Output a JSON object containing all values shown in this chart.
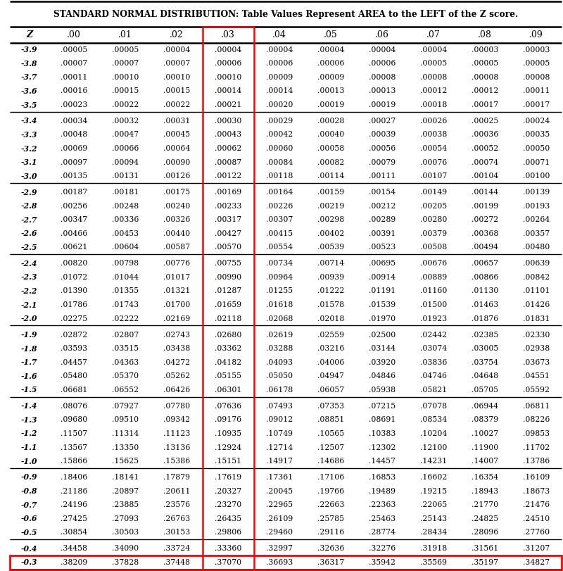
{
  "title": "STANDARD NORMAL DISTRIBUTION: Table Values Represent AREA to the LEFT of the Z score.",
  "headers": [
    "Z",
    ".00",
    ".01",
    ".02",
    ".03",
    ".04",
    ".05",
    ".06",
    ".07",
    ".08",
    ".09"
  ],
  "rows": [
    [
      "-3.9",
      ".00005",
      ".00005",
      ".00004",
      ".00004",
      ".00004",
      ".00004",
      ".00004",
      ".00004",
      ".00003",
      ".00003"
    ],
    [
      "-3.8",
      ".00007",
      ".00007",
      ".00007",
      ".00006",
      ".00006",
      ".00006",
      ".00006",
      ".00005",
      ".00005",
      ".00005"
    ],
    [
      "-3.7",
      ".00011",
      ".00010",
      ".00010",
      ".00010",
      ".00009",
      ".00009",
      ".00008",
      ".00008",
      ".00008",
      ".00008"
    ],
    [
      "-3.6",
      ".00016",
      ".00015",
      ".00015",
      ".00014",
      ".00014",
      ".00013",
      ".00013",
      ".00012",
      ".00012",
      ".00011"
    ],
    [
      "-3.5",
      ".00023",
      ".00022",
      ".00022",
      ".00021",
      ".00020",
      ".00019",
      ".00019",
      ".00018",
      ".00017",
      ".00017"
    ],
    [
      "-3.4",
      ".00034",
      ".00032",
      ".00031",
      ".00030",
      ".00029",
      ".00028",
      ".00027",
      ".00026",
      ".00025",
      ".00024"
    ],
    [
      "-3.3",
      ".00048",
      ".00047",
      ".00045",
      ".00043",
      ".00042",
      ".00040",
      ".00039",
      ".00038",
      ".00036",
      ".00035"
    ],
    [
      "-3.2",
      ".00069",
      ".00066",
      ".00064",
      ".00062",
      ".00060",
      ".00058",
      ".00056",
      ".00054",
      ".00052",
      ".00050"
    ],
    [
      "-3.1",
      ".00097",
      ".00094",
      ".00090",
      ".00087",
      ".00084",
      ".00082",
      ".00079",
      ".00076",
      ".00074",
      ".00071"
    ],
    [
      "-3.0",
      ".00135",
      ".00131",
      ".00126",
      ".00122",
      ".00118",
      ".00114",
      ".00111",
      ".00107",
      ".00104",
      ".00100"
    ],
    [
      "-2.9",
      ".00187",
      ".00181",
      ".00175",
      ".00169",
      ".00164",
      ".00159",
      ".00154",
      ".00149",
      ".00144",
      ".00139"
    ],
    [
      "-2.8",
      ".00256",
      ".00248",
      ".00240",
      ".00233",
      ".00226",
      ".00219",
      ".00212",
      ".00205",
      ".00199",
      ".00193"
    ],
    [
      "-2.7",
      ".00347",
      ".00336",
      ".00326",
      ".00317",
      ".00307",
      ".00298",
      ".00289",
      ".00280",
      ".00272",
      ".00264"
    ],
    [
      "-2.6",
      ".00466",
      ".00453",
      ".00440",
      ".00427",
      ".00415",
      ".00402",
      ".00391",
      ".00379",
      ".00368",
      ".00357"
    ],
    [
      "-2.5",
      ".00621",
      ".00604",
      ".00587",
      ".00570",
      ".00554",
      ".00539",
      ".00523",
      ".00508",
      ".00494",
      ".00480"
    ],
    [
      "-2.4",
      ".00820",
      ".00798",
      ".00776",
      ".00755",
      ".00734",
      ".00714",
      ".00695",
      ".00676",
      ".00657",
      ".00639"
    ],
    [
      "-2.3",
      ".01072",
      ".01044",
      ".01017",
      ".00990",
      ".00964",
      ".00939",
      ".00914",
      ".00889",
      ".00866",
      ".00842"
    ],
    [
      "-2.2",
      ".01390",
      ".01355",
      ".01321",
      ".01287",
      ".01255",
      ".01222",
      ".01191",
      ".01160",
      ".01130",
      ".01101"
    ],
    [
      "-2.1",
      ".01786",
      ".01743",
      ".01700",
      ".01659",
      ".01618",
      ".01578",
      ".01539",
      ".01500",
      ".01463",
      ".01426"
    ],
    [
      "-2.0",
      ".02275",
      ".02222",
      ".02169",
      ".02118",
      ".02068",
      ".02018",
      ".01970",
      ".01923",
      ".01876",
      ".01831"
    ],
    [
      "-1.9",
      ".02872",
      ".02807",
      ".02743",
      ".02680",
      ".02619",
      ".02559",
      ".02500",
      ".02442",
      ".02385",
      ".02330"
    ],
    [
      "-1.8",
      ".03593",
      ".03515",
      ".03438",
      ".03362",
      ".03288",
      ".03216",
      ".03144",
      ".03074",
      ".03005",
      ".02938"
    ],
    [
      "-1.7",
      ".04457",
      ".04363",
      ".04272",
      ".04182",
      ".04093",
      ".04006",
      ".03920",
      ".03836",
      ".03754",
      ".03673"
    ],
    [
      "-1.6",
      ".05480",
      ".05370",
      ".05262",
      ".05155",
      ".05050",
      ".04947",
      ".04846",
      ".04746",
      ".04648",
      ".04551"
    ],
    [
      "-1.5",
      ".06681",
      ".06552",
      ".06426",
      ".06301",
      ".06178",
      ".06057",
      ".05938",
      ".05821",
      ".05705",
      ".05592"
    ],
    [
      "-1.4",
      ".08076",
      ".07927",
      ".07780",
      ".07636",
      ".07493",
      ".07353",
      ".07215",
      ".07078",
      ".06944",
      ".06811"
    ],
    [
      "-1.3",
      ".09680",
      ".09510",
      ".09342",
      ".09176",
      ".09012",
      ".08851",
      ".08691",
      ".08534",
      ".08379",
      ".08226"
    ],
    [
      "-1.2",
      ".11507",
      ".11314",
      ".11123",
      ".10935",
      ".10749",
      ".10565",
      ".10383",
      ".10204",
      ".10027",
      ".09853"
    ],
    [
      "-1.1",
      ".13567",
      ".13350",
      ".13136",
      ".12924",
      ".12714",
      ".12507",
      ".12302",
      ".12100",
      ".11900",
      ".11702"
    ],
    [
      "-1.0",
      ".15866",
      ".15625",
      ".15386",
      ".15151",
      ".14917",
      ".14686",
      ".14457",
      ".14231",
      ".14007",
      ".13786"
    ],
    [
      "-0.9",
      ".18406",
      ".18141",
      ".17879",
      ".17619",
      ".17361",
      ".17106",
      ".16853",
      ".16602",
      ".16354",
      ".16109"
    ],
    [
      "-0.8",
      ".21186",
      ".20897",
      ".20611",
      ".20327",
      ".20045",
      ".19766",
      ".19489",
      ".19215",
      ".18943",
      ".18673"
    ],
    [
      "-0.7",
      ".24196",
      ".23885",
      ".23576",
      ".23270",
      ".22965",
      ".22663",
      ".22363",
      ".22065",
      ".21770",
      ".21476"
    ],
    [
      "-0.6",
      ".27425",
      ".27093",
      ".26763",
      ".26435",
      ".26109",
      ".25785",
      ".25463",
      ".25143",
      ".24825",
      ".24510"
    ],
    [
      "-0.5",
      ".30854",
      ".30503",
      ".30153",
      ".29806",
      ".29460",
      ".29116",
      ".28774",
      ".28434",
      ".28096",
      ".27760"
    ],
    [
      "-0.4",
      ".34458",
      ".34090",
      ".33724",
      ".33360",
      ".32997",
      ".32636",
      ".32276",
      ".31918",
      ".31561",
      ".31207"
    ],
    [
      "-0.3",
      ".38209",
      ".37828",
      ".37448",
      ".37070",
      ".36693",
      ".36317",
      ".35942",
      ".35569",
      ".35197",
      ".34827"
    ]
  ],
  "highlighted_col": 4,
  "group_separators_after": [
    4,
    9,
    14,
    19,
    24,
    29,
    34
  ],
  "bg_color": "#ffffff",
  "text_color": "#000000",
  "title_fontsize": 8.8,
  "cell_fontsize": 7.8,
  "header_fontsize": 9.0,
  "fig_width": 8.0,
  "fig_height": 8.11,
  "dpi": 100
}
